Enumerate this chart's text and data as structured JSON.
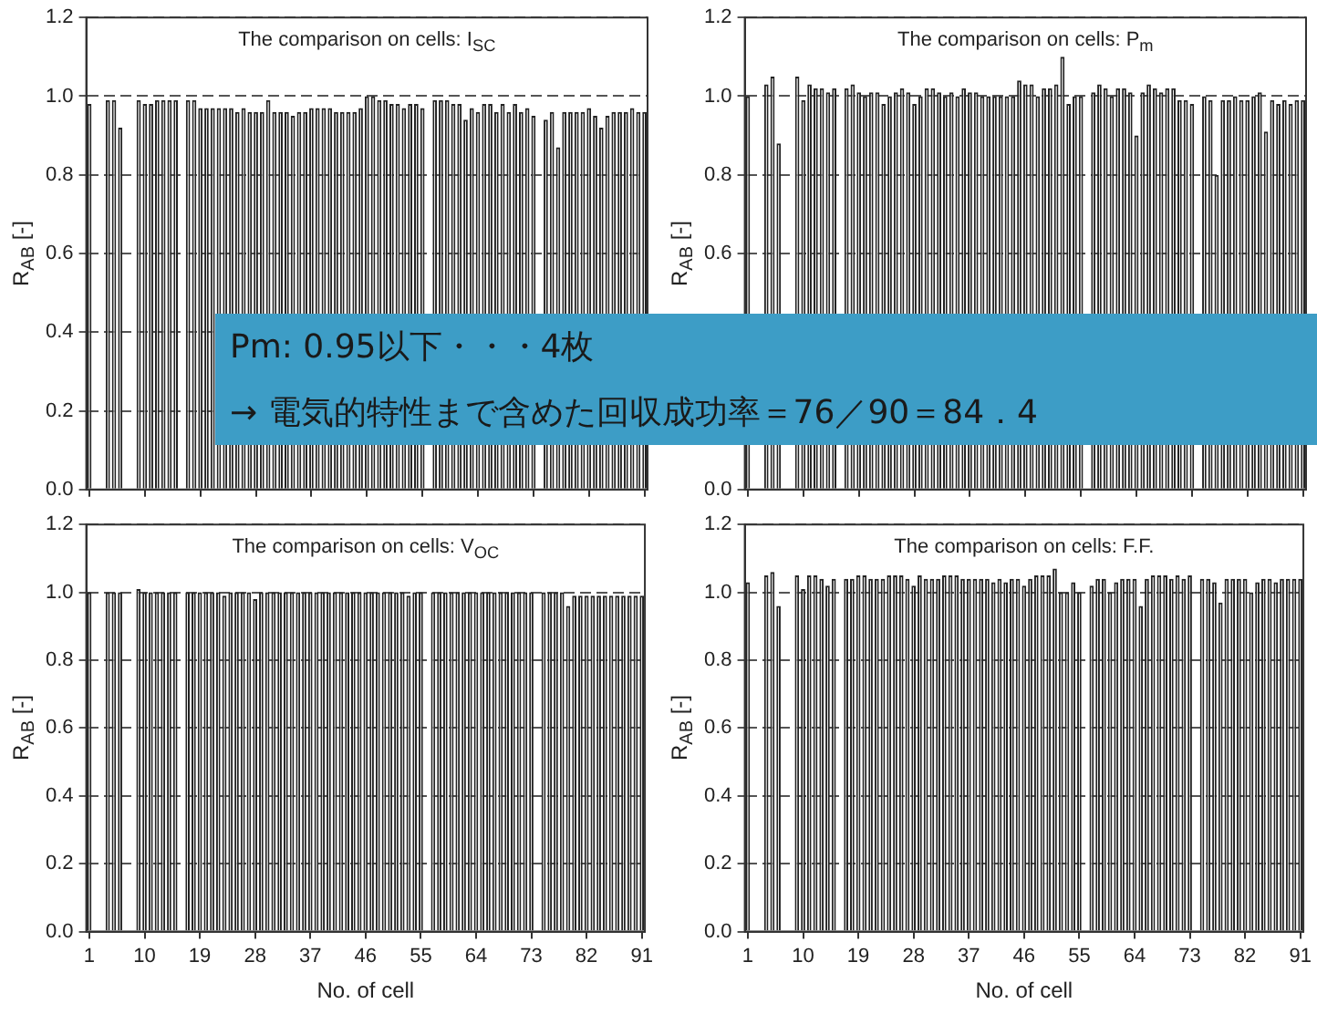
{
  "chart_data": [
    {
      "type": "bar",
      "title": "The comparison on cells: I$_{SC}$",
      "ylabel": "R$_{AB}$ [-]",
      "color": "#222222",
      "grid": "y",
      "tick_labels": "y",
      "categories": [
        "1",
        null,
        null,
        null,
        null,
        null,
        null,
        null,
        null,
        "10",
        null,
        null,
        null,
        null,
        null,
        null,
        null,
        null,
        "19",
        null,
        null,
        null,
        null,
        null,
        null,
        null,
        null,
        "28",
        null,
        null,
        null,
        null,
        null,
        null,
        null,
        null,
        "37",
        null,
        null,
        null,
        null,
        null,
        null,
        null,
        null,
        "46",
        null,
        null,
        null,
        null,
        null,
        null,
        null,
        null,
        "55",
        null,
        null,
        null,
        null,
        null,
        null,
        null,
        null,
        "64",
        null,
        null,
        null,
        null,
        null,
        null,
        null,
        null,
        "73",
        null,
        null,
        null,
        null,
        null,
        null,
        null,
        null,
        "82",
        null,
        null,
        null,
        null,
        null,
        null,
        null,
        null,
        "91"
      ],
      "values": [
        0.98,
        null,
        null,
        0.99,
        0.99,
        0.92,
        null,
        null,
        0.99,
        0.98,
        0.98,
        0.99,
        0.99,
        0.99,
        0.99,
        null,
        0.99,
        0.99,
        0.97,
        0.97,
        0.97,
        0.97,
        0.97,
        0.97,
        0.96,
        0.97,
        0.96,
        0.96,
        0.96,
        0.99,
        0.96,
        0.96,
        0.96,
        0.95,
        0.96,
        0.96,
        0.97,
        0.97,
        0.97,
        0.97,
        0.96,
        0.96,
        0.96,
        0.96,
        0.97,
        1.0,
        1.0,
        0.99,
        0.99,
        0.98,
        0.98,
        0.97,
        0.98,
        0.98,
        0.97,
        null,
        0.99,
        0.99,
        0.99,
        0.98,
        0.98,
        0.94,
        0.97,
        0.96,
        0.98,
        0.98,
        0.96,
        0.98,
        0.96,
        0.98,
        0.96,
        0.97,
        0.95,
        null,
        0.94,
        0.96,
        0.87,
        0.96,
        0.96,
        0.96,
        0.96,
        0.97,
        0.95,
        0.92,
        0.95,
        0.96,
        0.96,
        0.96,
        0.97,
        0.96,
        0.96
      ],
      "ylim": [
        0,
        1.2
      ],
      "yticks": [
        {
          "value": 0,
          "label": "0.0"
        },
        {
          "value": 0.2,
          "label": "0.2"
        },
        {
          "value": 0.4,
          "label": "0.4"
        },
        {
          "value": 0.6,
          "label": "0.6"
        },
        {
          "value": 0.8,
          "label": "0.8"
        },
        {
          "value": 1,
          "label": "1.0"
        },
        {
          "value": 1.2,
          "label": "1.2"
        }
      ],
      "annotations": [
        "Pm: 0.95以下・・・4枚",
        "→ 電気的特性まで含めた回収成功率＝76／90＝84．4"
      ]
    },
    {
      "type": "bar",
      "title": "The comparison on cells: P$_{m}$",
      "ylabel": "R$_{AB}$ [-]",
      "color": "#222222",
      "grid": "y",
      "tick_labels": "y",
      "categories": [
        "1",
        null,
        null,
        null,
        null,
        null,
        null,
        null,
        null,
        "10",
        null,
        null,
        null,
        null,
        null,
        null,
        null,
        null,
        "19",
        null,
        null,
        null,
        null,
        null,
        null,
        null,
        null,
        "28",
        null,
        null,
        null,
        null,
        null,
        null,
        null,
        null,
        "37",
        null,
        null,
        null,
        null,
        null,
        null,
        null,
        null,
        "46",
        null,
        null,
        null,
        null,
        null,
        null,
        null,
        null,
        "55",
        null,
        null,
        null,
        null,
        null,
        null,
        null,
        null,
        "64",
        null,
        null,
        null,
        null,
        null,
        null,
        null,
        null,
        "73",
        null,
        null,
        null,
        null,
        null,
        null,
        null,
        null,
        "82",
        null,
        null,
        null,
        null,
        null,
        null,
        null,
        null,
        "91"
      ],
      "values": [
        1.0,
        null,
        null,
        1.03,
        1.05,
        0.88,
        null,
        null,
        1.05,
        0.99,
        1.03,
        1.02,
        1.02,
        1.01,
        1.02,
        null,
        1.02,
        1.03,
        1.01,
        1.0,
        1.01,
        1.01,
        0.98,
        1.0,
        1.01,
        1.02,
        1.01,
        0.98,
        1.0,
        1.02,
        1.02,
        1.01,
        1.0,
        1.01,
        1.0,
        1.02,
        1.01,
        1.01,
        1.0,
        1.0,
        1.0,
        1.0,
        1.0,
        1.0,
        1.04,
        1.03,
        1.03,
        1.0,
        1.02,
        1.02,
        1.03,
        1.1,
        0.98,
        1.0,
        1.0,
        null,
        1.01,
        1.03,
        1.02,
        1.0,
        1.02,
        1.02,
        1.01,
        0.9,
        1.01,
        1.03,
        1.02,
        1.01,
        1.02,
        1.02,
        0.99,
        0.99,
        0.98,
        null,
        1.0,
        0.99,
        0.8,
        0.99,
        0.99,
        1.0,
        0.99,
        0.99,
        1.0,
        1.01,
        0.91,
        0.99,
        0.98,
        0.99,
        0.98,
        0.99,
        0.99
      ],
      "ylim": [
        0,
        1.2
      ],
      "yticks": [
        {
          "value": 0,
          "label": "0.0"
        },
        {
          "value": 0.2,
          "label": null
        },
        {
          "value": 0.4,
          "label": null
        },
        {
          "value": 0.6,
          "label": "0.6"
        },
        {
          "value": 0.8,
          "label": "0.8"
        },
        {
          "value": 1,
          "label": "1.0"
        },
        {
          "value": 1.2,
          "label": "1.2"
        }
      ]
    },
    {
      "type": "bar",
      "title": "The comparison on cells: V$_{OC}$",
      "ylabel": "R$_{AB}$ [-]",
      "xlabel": "No. of cell",
      "color": "#222222",
      "grid": "y",
      "categories": [
        "1",
        null,
        null,
        null,
        null,
        null,
        null,
        null,
        null,
        "10",
        null,
        null,
        null,
        null,
        null,
        null,
        null,
        null,
        "19",
        null,
        null,
        null,
        null,
        null,
        null,
        null,
        null,
        "28",
        null,
        null,
        null,
        null,
        null,
        null,
        null,
        null,
        "37",
        null,
        null,
        null,
        null,
        null,
        null,
        null,
        null,
        "46",
        null,
        null,
        null,
        null,
        null,
        null,
        null,
        null,
        "55",
        null,
        null,
        null,
        null,
        null,
        null,
        null,
        null,
        "64",
        null,
        null,
        null,
        null,
        null,
        null,
        null,
        null,
        "73",
        null,
        null,
        null,
        null,
        null,
        null,
        null,
        null,
        "82",
        null,
        null,
        null,
        null,
        null,
        null,
        null,
        null,
        "91"
      ],
      "values": [
        1.0,
        null,
        null,
        1.0,
        1.0,
        1.0,
        null,
        null,
        1.01,
        1.0,
        1.0,
        1.0,
        1.0,
        1.0,
        1.0,
        null,
        1.0,
        1.0,
        1.0,
        1.0,
        1.0,
        1.0,
        0.99,
        1.0,
        1.0,
        1.0,
        1.0,
        0.98,
        1.0,
        1.0,
        1.0,
        1.0,
        1.0,
        1.0,
        1.0,
        1.0,
        1.0,
        1.0,
        1.0,
        1.0,
        1.0,
        1.0,
        1.0,
        1.0,
        1.0,
        1.0,
        1.0,
        1.0,
        1.0,
        1.0,
        1.0,
        1.0,
        0.99,
        1.0,
        1.0,
        null,
        1.0,
        1.0,
        1.0,
        1.0,
        1.0,
        1.0,
        1.0,
        1.0,
        1.0,
        1.0,
        1.0,
        1.0,
        1.0,
        1.0,
        1.0,
        1.0,
        1.0,
        null,
        1.0,
        1.0,
        1.0,
        1.0,
        0.96,
        0.99,
        0.99,
        0.99,
        0.99,
        0.99,
        0.99,
        0.99,
        0.99,
        0.99,
        0.99,
        0.99,
        0.99
      ],
      "ylim": [
        0,
        1.2
      ],
      "yticks": [
        {
          "value": 0,
          "label": "0.0"
        },
        {
          "value": 0.2,
          "label": "0.2"
        },
        {
          "value": 0.4,
          "label": "0.4"
        },
        {
          "value": 0.6,
          "label": "0.6"
        },
        {
          "value": 0.8,
          "label": "0.8"
        },
        {
          "value": 1,
          "label": "1.0"
        },
        {
          "value": 1.2,
          "label": "1.2"
        }
      ]
    },
    {
      "type": "bar",
      "title": "The comparison on cells: F.F.",
      "ylabel": "R$_{AB}$ [-]",
      "xlabel": "No. of cell",
      "color": "#222222",
      "grid": "y",
      "categories": [
        "1",
        null,
        null,
        null,
        null,
        null,
        null,
        null,
        null,
        "10",
        null,
        null,
        null,
        null,
        null,
        null,
        null,
        null,
        "19",
        null,
        null,
        null,
        null,
        null,
        null,
        null,
        null,
        "28",
        null,
        null,
        null,
        null,
        null,
        null,
        null,
        null,
        "37",
        null,
        null,
        null,
        null,
        null,
        null,
        null,
        null,
        "46",
        null,
        null,
        null,
        null,
        null,
        null,
        null,
        null,
        "55",
        null,
        null,
        null,
        null,
        null,
        null,
        null,
        null,
        "64",
        null,
        null,
        null,
        null,
        null,
        null,
        null,
        null,
        "73",
        null,
        null,
        null,
        null,
        null,
        null,
        null,
        null,
        "82",
        null,
        null,
        null,
        null,
        null,
        null,
        null,
        null,
        "91"
      ],
      "values": [
        1.03,
        null,
        null,
        1.05,
        1.06,
        0.96,
        null,
        null,
        1.05,
        1.01,
        1.05,
        1.05,
        1.04,
        1.02,
        1.04,
        null,
        1.04,
        1.04,
        1.05,
        1.05,
        1.04,
        1.04,
        1.04,
        1.05,
        1.05,
        1.05,
        1.04,
        1.02,
        1.05,
        1.04,
        1.04,
        1.04,
        1.05,
        1.05,
        1.05,
        1.04,
        1.04,
        1.04,
        1.04,
        1.04,
        1.03,
        1.04,
        1.03,
        1.04,
        1.04,
        1.02,
        1.04,
        1.05,
        1.05,
        1.05,
        1.07,
        1.0,
        1.0,
        1.03,
        1.0,
        null,
        1.02,
        1.04,
        1.04,
        1.0,
        1.03,
        1.04,
        1.04,
        1.04,
        0.96,
        1.04,
        1.05,
        1.05,
        1.05,
        1.04,
        1.05,
        1.04,
        1.05,
        null,
        1.04,
        1.04,
        1.03,
        0.97,
        1.04,
        1.04,
        1.04,
        1.04,
        1.0,
        1.03,
        1.04,
        1.04,
        1.03,
        1.04,
        1.04,
        1.04,
        1.04
      ],
      "ylim": [
        0,
        1.2
      ],
      "yticks": [
        {
          "value": 0,
          "label": "0.0"
        },
        {
          "value": 0.2,
          "label": "0.2"
        },
        {
          "value": 0.4,
          "label": "0.4"
        },
        {
          "value": 0.6,
          "label": "0.6"
        },
        {
          "value": 0.8,
          "label": "0.8"
        },
        {
          "value": 1,
          "label": "1.0"
        },
        {
          "value": 1.2,
          "label": "1.2"
        }
      ]
    }
  ]
}
